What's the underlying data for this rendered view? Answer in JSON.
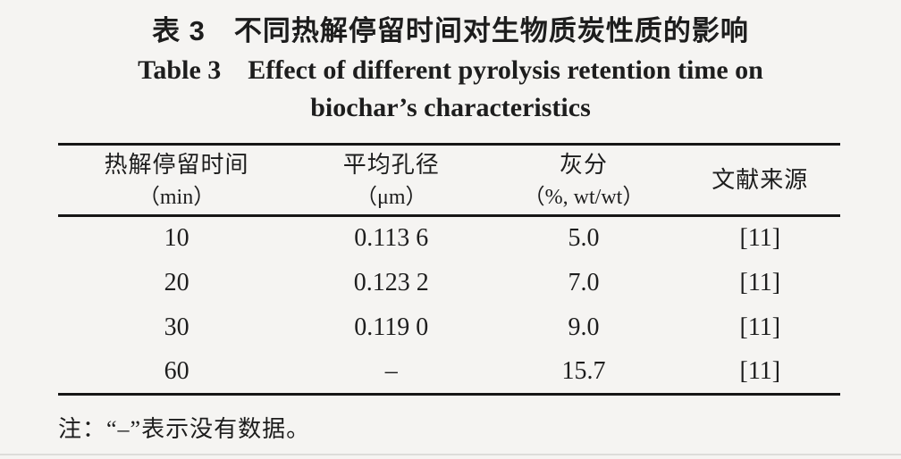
{
  "colors": {
    "background": "#f5f4f2",
    "text": "#1d1d1d",
    "rule": "#161616"
  },
  "caption": {
    "zh": "表 3　不同热解停留时间对生物质炭性质的影响",
    "en_line1": "Table 3　Effect of different pyrolysis retention time on",
    "en_line2": "biochar’s characteristics"
  },
  "table": {
    "columns": [
      {
        "label": "热解停留时间",
        "unit": "（min）"
      },
      {
        "label": "平均孔径",
        "unit": "（μm）"
      },
      {
        "label": "灰分",
        "unit": "（%, wt/wt）"
      },
      {
        "label": "文献来源",
        "unit": ""
      }
    ],
    "rows": [
      [
        "10",
        "0.113 6",
        "5.0",
        "[11]"
      ],
      [
        "20",
        "0.123 2",
        "7.0",
        "[11]"
      ],
      [
        "30",
        "0.119 0",
        "9.0",
        "[11]"
      ],
      [
        "60",
        "–",
        "15.7",
        "[11]"
      ]
    ]
  },
  "note": "注：“–”表示没有数据。"
}
